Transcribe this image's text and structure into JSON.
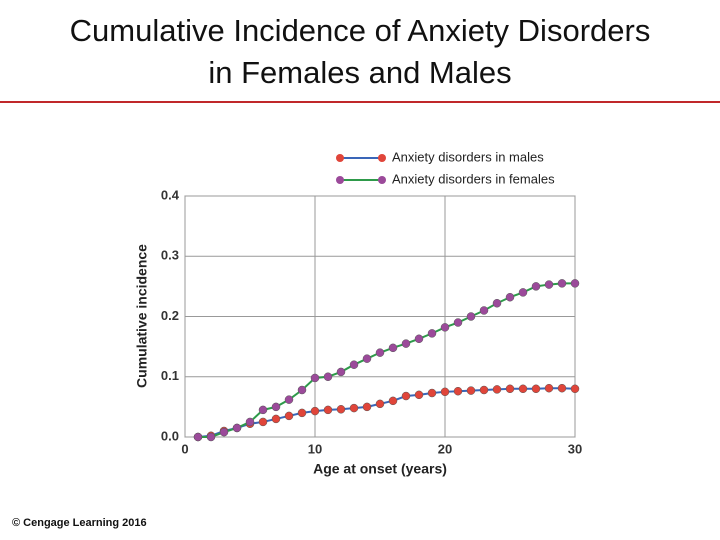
{
  "chart_data": {
    "type": "line",
    "title_lines": [
      "Cumulative Incidence of Anxiety Disorders",
      "in Females and Males"
    ],
    "x_label": "Age at onset (years)",
    "y_label": "Cumulative incidence",
    "x": [
      1,
      2,
      3,
      4,
      5,
      6,
      7,
      8,
      9,
      10,
      11,
      12,
      13,
      14,
      15,
      16,
      17,
      18,
      19,
      20,
      21,
      22,
      23,
      24,
      25,
      26,
      27,
      28,
      29,
      30
    ],
    "series": [
      {
        "name": "Anxiety disorders in males",
        "color": "#3a66b8",
        "marker_color": "#e0453a",
        "values": [
          0,
          0.002,
          0.01,
          0.015,
          0.022,
          0.025,
          0.03,
          0.035,
          0.04,
          0.043,
          0.045,
          0.046,
          0.048,
          0.05,
          0.055,
          0.06,
          0.068,
          0.07,
          0.073,
          0.075,
          0.076,
          0.077,
          0.078,
          0.079,
          0.08,
          0.08,
          0.08,
          0.081,
          0.081,
          0.08
        ]
      },
      {
        "name": "Anxiety disorders in females",
        "color": "#2e9a4a",
        "marker_color": "#9b4a9a",
        "values": [
          0,
          0,
          0.008,
          0.015,
          0.025,
          0.045,
          0.05,
          0.062,
          0.078,
          0.098,
          0.1,
          0.108,
          0.12,
          0.13,
          0.14,
          0.148,
          0.155,
          0.163,
          0.172,
          0.182,
          0.19,
          0.2,
          0.21,
          0.222,
          0.232,
          0.24,
          0.25,
          0.253,
          0.255,
          0.255
        ]
      }
    ],
    "xlim": [
      0,
      30
    ],
    "xticks": [
      0,
      10,
      20,
      30
    ],
    "ylim": [
      0,
      0.4
    ],
    "yticks": [
      {
        "value": 0,
        "label": "0.0"
      },
      {
        "value": 0.1,
        "label": "0.1"
      },
      {
        "value": 0.2,
        "label": "0.2"
      },
      {
        "value": 0.3,
        "label": "0.3"
      },
      {
        "value": 0.4,
        "label": "0.4"
      }
    ],
    "grid": true,
    "legend": "top-right"
  },
  "footer": "© Cengage Learning 2016"
}
